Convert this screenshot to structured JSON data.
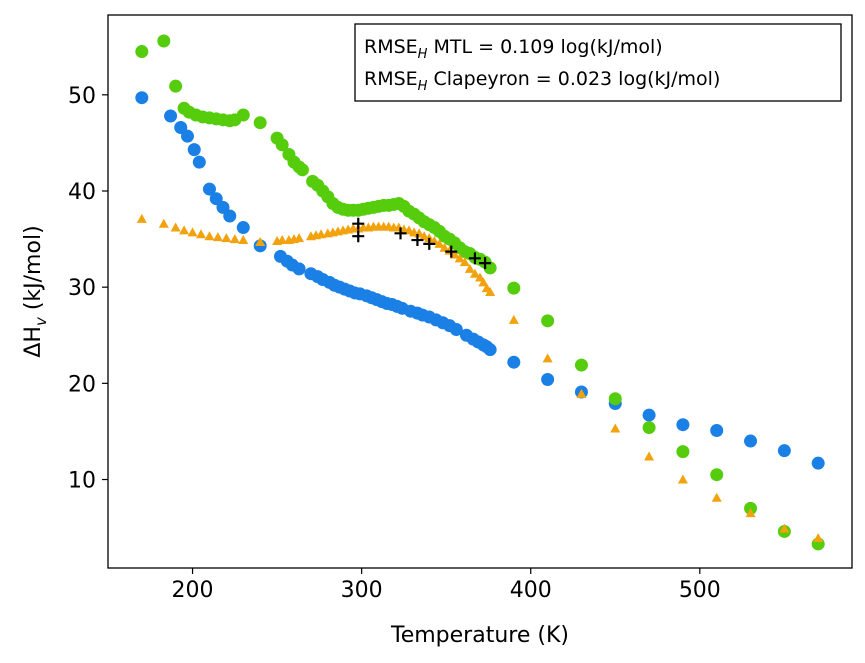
{
  "chart_data": {
    "type": "scatter",
    "xlabel": "Temperature (K)",
    "ylabel": {
      "main": "ΔH",
      "sub": "v",
      "rest": " (kJ/mol)"
    },
    "xlim": [
      150,
      590
    ],
    "ylim": [
      0.8,
      58.3
    ],
    "xticks": [
      200,
      300,
      400,
      500
    ],
    "yticks": [
      10,
      20,
      30,
      40,
      50
    ],
    "grid": false,
    "legend_placement": "top-right",
    "annotation_lines": [
      {
        "pre": "RMSE",
        "sub": "H",
        "post": " MTL = 0.109 log(kJ/mol)"
      },
      {
        "pre": "RMSE",
        "sub": "H",
        "post": " Clapeyron = 0.023 log(kJ/mol)"
      }
    ],
    "series": [
      {
        "name": "blue circles",
        "marker": "circle",
        "color": "#1a80e5",
        "x": [
          170,
          187,
          193,
          197,
          201,
          204,
          210,
          214,
          218,
          222,
          230,
          240,
          252,
          256,
          259,
          263,
          270,
          274,
          277,
          281,
          284,
          287,
          290,
          293,
          296,
          299,
          303,
          306,
          309,
          312,
          315,
          318,
          321,
          324,
          329,
          333,
          336,
          340,
          344,
          348,
          352,
          356,
          362,
          366,
          369,
          372,
          374,
          376,
          390,
          410,
          430,
          450,
          470,
          490,
          510,
          530,
          550,
          570
        ],
        "y": [
          49.7,
          47.8,
          46.6,
          45.7,
          44.3,
          43.0,
          40.2,
          39.2,
          38.3,
          37.4,
          36.2,
          34.3,
          33.2,
          32.7,
          32.3,
          31.9,
          31.4,
          31.1,
          30.8,
          30.5,
          30.2,
          30.0,
          29.8,
          29.6,
          29.4,
          29.3,
          29.1,
          28.9,
          28.7,
          28.5,
          28.3,
          28.2,
          28.0,
          27.8,
          27.5,
          27.3,
          27.1,
          26.9,
          26.6,
          26.3,
          26.0,
          25.6,
          25.0,
          24.6,
          24.3,
          24.0,
          23.8,
          23.5,
          22.2,
          20.4,
          19.1,
          17.9,
          16.7,
          15.7,
          15.1,
          14.0,
          13.0,
          11.7
        ]
      },
      {
        "name": "green circles",
        "marker": "circle",
        "color": "#55cc0c",
        "x": [
          170,
          183,
          190,
          195,
          198,
          202,
          206,
          210,
          214,
          218,
          222,
          225,
          230,
          240,
          250,
          253,
          257,
          260,
          263,
          265,
          271,
          274,
          277,
          280,
          283,
          286,
          289,
          292,
          295,
          298,
          301,
          304,
          307,
          310,
          313,
          316,
          319,
          322,
          325,
          328,
          331,
          334,
          337,
          340,
          343,
          346,
          349,
          352,
          355,
          358,
          361,
          364,
          367,
          370,
          373,
          376,
          390,
          410,
          430,
          450,
          470,
          490,
          510,
          530,
          550,
          570
        ],
        "y": [
          54.5,
          55.6,
          50.9,
          48.6,
          48.2,
          47.9,
          47.7,
          47.6,
          47.5,
          47.4,
          47.3,
          47.4,
          47.9,
          47.1,
          45.5,
          44.8,
          43.8,
          43.0,
          42.5,
          42.2,
          41.0,
          40.6,
          40.0,
          39.4,
          38.7,
          38.3,
          38.1,
          38.0,
          38.0,
          38.0,
          38.1,
          38.2,
          38.3,
          38.4,
          38.5,
          38.5,
          38.6,
          38.7,
          38.4,
          37.9,
          37.6,
          37.2,
          36.8,
          36.5,
          36.2,
          35.8,
          35.3,
          35.0,
          34.6,
          34.1,
          33.7,
          33.5,
          33.1,
          32.9,
          32.6,
          32.0,
          29.9,
          26.5,
          21.9,
          18.4,
          15.4,
          12.9,
          10.5,
          7.0,
          4.6,
          3.3
        ]
      },
      {
        "name": "orange triangles",
        "marker": "triangle",
        "color": "#f2a20d",
        "x": [
          170,
          183,
          190,
          195,
          200,
          205,
          210,
          215,
          220,
          225,
          230,
          240,
          250,
          253,
          257,
          260,
          263,
          270,
          273,
          276,
          280,
          283,
          286,
          289,
          292,
          295,
          298,
          301,
          304,
          307,
          310,
          313,
          316,
          319,
          322,
          325,
          328,
          331,
          334,
          337,
          340,
          343,
          346,
          349,
          352,
          355,
          358,
          361,
          364,
          367,
          370,
          372,
          374,
          376,
          390,
          410,
          430,
          450,
          470,
          490,
          510,
          530,
          550,
          570
        ],
        "y": [
          37.1,
          36.6,
          36.2,
          35.9,
          35.7,
          35.5,
          35.3,
          35.2,
          35.1,
          35.0,
          34.9,
          34.7,
          34.8,
          34.9,
          34.9,
          35.0,
          35.1,
          35.3,
          35.4,
          35.5,
          35.6,
          35.7,
          35.8,
          35.9,
          36.0,
          36.1,
          36.1,
          36.2,
          36.2,
          36.3,
          36.3,
          36.3,
          36.3,
          36.2,
          36.2,
          36.0,
          35.9,
          35.7,
          35.6,
          35.3,
          35.1,
          34.8,
          34.5,
          34.1,
          33.8,
          33.4,
          33.0,
          32.6,
          31.9,
          31.4,
          31.0,
          30.5,
          29.9,
          29.5,
          26.6,
          22.6,
          18.9,
          15.3,
          12.4,
          10.0,
          8.1,
          6.5,
          4.9,
          3.9
        ]
      },
      {
        "name": "black plus",
        "marker": "plus",
        "color": "#000000",
        "x": [
          298,
          298,
          323,
          333,
          340,
          353,
          367,
          373
        ],
        "y": [
          36.6,
          35.3,
          35.6,
          34.9,
          34.5,
          33.7,
          33.0,
          32.5
        ]
      }
    ]
  }
}
